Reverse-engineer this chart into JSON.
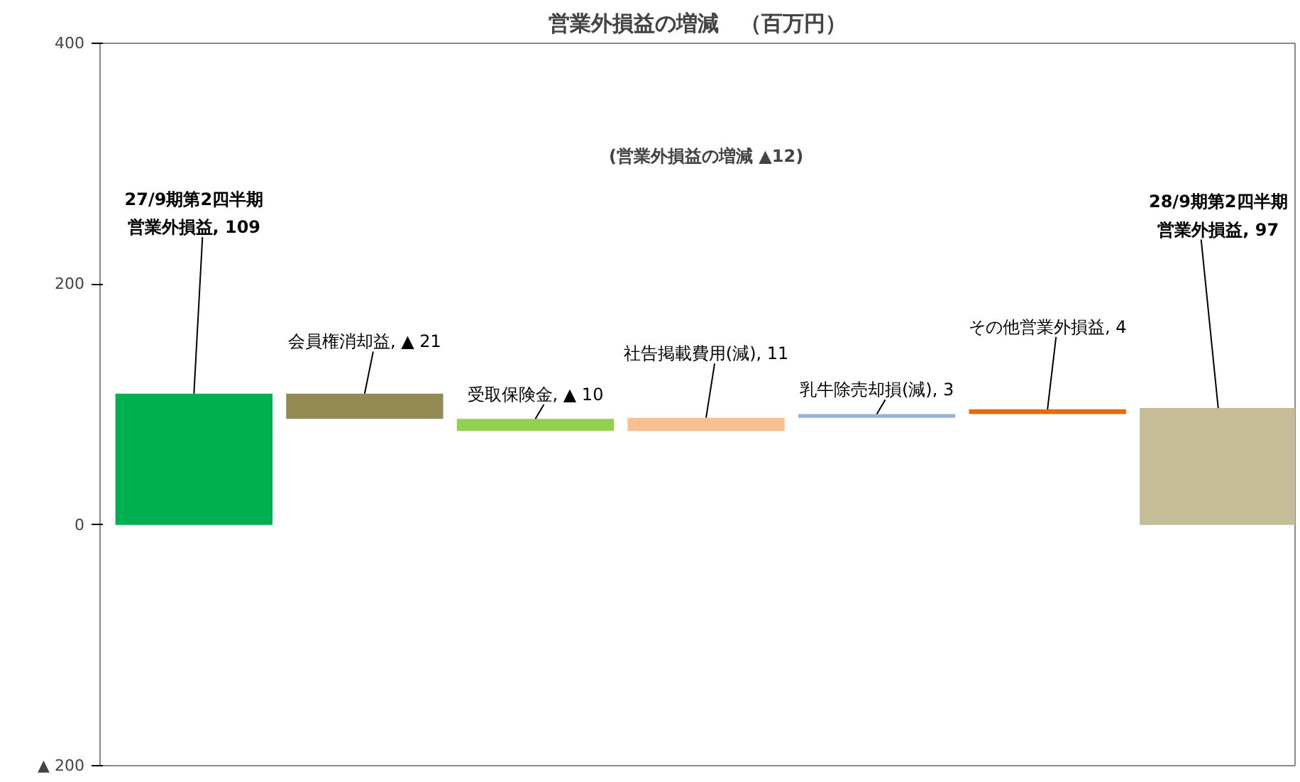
{
  "chart_data": {
    "type": "bar",
    "title": "営業外損益の増減　（百万円）",
    "categories": [
      null,
      null,
      null,
      null,
      null,
      null,
      null
    ],
    "values": [
      109,
      -21,
      -10,
      11,
      3,
      4,
      97
    ],
    "base": [
      0,
      109,
      88,
      78,
      89,
      92,
      0
    ],
    "value_labels": [
      "27/9期第2四半期営業外損益, 109",
      "会員権消却益, ▲ 21",
      "受取保険金, ▲ 10",
      "社告掲載費用(減), 11",
      "乳牛除売却損(減), 3",
      "その他営業外損益, 4",
      "28/9期第2四半期営業外損益, 97"
    ],
    "colors": [
      "#00b050",
      "#948a54",
      "#92d050",
      "#fac090",
      "#95b3d7",
      "#e46c0a",
      "#c4bd97"
    ],
    "ylim": [
      -200,
      400
    ],
    "yticks": [
      {
        "value": -200,
        "label": "▲ 200"
      },
      0,
      200,
      400
    ],
    "annotations": [
      "(営業外損益の増減 ▲12)"
    ],
    "grid": false
  }
}
